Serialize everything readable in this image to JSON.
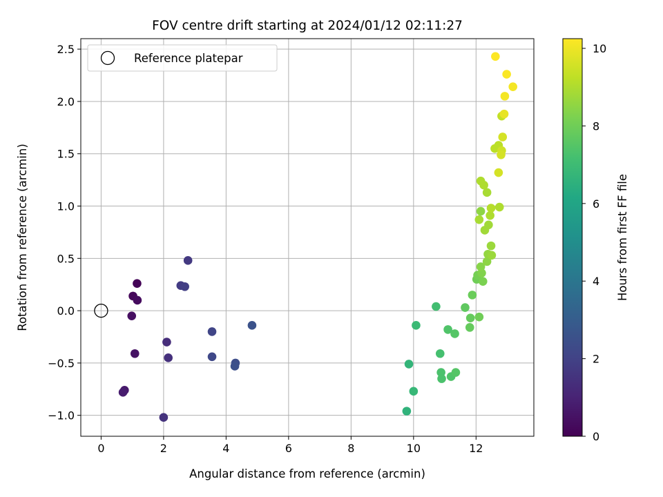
{
  "chart_data": {
    "type": "scatter",
    "title": "FOV centre drift starting at 2024/01/12 02:11:27",
    "xlabel": "Angular distance from reference (arcmin)",
    "ylabel": "Rotation from reference (arcmin)",
    "xlim": [
      -0.65,
      13.85
    ],
    "ylim": [
      -1.2,
      2.6
    ],
    "xticks": [
      0,
      2,
      4,
      6,
      8,
      10,
      12
    ],
    "yticks": [
      -1.0,
      -0.5,
      0.0,
      0.5,
      1.0,
      1.5,
      2.0,
      2.5
    ],
    "xtick_labels": [
      "0",
      "2",
      "4",
      "6",
      "8",
      "10",
      "12"
    ],
    "ytick_labels": [
      "−1.0",
      "−0.5",
      "0.0",
      "0.5",
      "1.0",
      "1.5",
      "2.0",
      "2.5"
    ],
    "grid": true,
    "colormap": "viridis",
    "colorbar": {
      "label": "Hours from first FF file",
      "range": [
        0,
        10.25
      ],
      "ticks": [
        0,
        2,
        4,
        6,
        8,
        10
      ],
      "tick_labels": [
        "0",
        "2",
        "4",
        "6",
        "8",
        "10"
      ]
    },
    "legend": {
      "position": "top-left",
      "entries": [
        {
          "label": "Reference platepar",
          "marker": "open-circle"
        }
      ]
    },
    "reference_point": {
      "x": 0,
      "y": 0
    },
    "points": [
      {
        "x": 1.15,
        "y": 0.26,
        "h": 0.1
      },
      {
        "x": 1.02,
        "y": 0.14,
        "h": 0.2
      },
      {
        "x": 1.16,
        "y": 0.1,
        "h": 0.3
      },
      {
        "x": 0.98,
        "y": -0.05,
        "h": 0.4
      },
      {
        "x": 1.08,
        "y": -0.41,
        "h": 0.5
      },
      {
        "x": 0.75,
        "y": -0.76,
        "h": 0.7
      },
      {
        "x": 0.7,
        "y": -0.78,
        "h": 0.8
      },
      {
        "x": 2.1,
        "y": -0.3,
        "h": 1.3
      },
      {
        "x": 2.15,
        "y": -0.45,
        "h": 1.4
      },
      {
        "x": 2.0,
        "y": -1.02,
        "h": 1.5
      },
      {
        "x": 2.78,
        "y": 0.48,
        "h": 1.7
      },
      {
        "x": 2.55,
        "y": 0.24,
        "h": 1.8
      },
      {
        "x": 2.68,
        "y": 0.23,
        "h": 1.9
      },
      {
        "x": 3.55,
        "y": -0.2,
        "h": 2.1
      },
      {
        "x": 3.55,
        "y": -0.44,
        "h": 2.2
      },
      {
        "x": 4.3,
        "y": -0.5,
        "h": 2.4
      },
      {
        "x": 4.28,
        "y": -0.53,
        "h": 2.5
      },
      {
        "x": 4.83,
        "y": -0.14,
        "h": 2.6
      },
      {
        "x": 9.78,
        "y": -0.96,
        "h": 6.6
      },
      {
        "x": 9.85,
        "y": -0.51,
        "h": 6.7
      },
      {
        "x": 10.0,
        "y": -0.77,
        "h": 6.8
      },
      {
        "x": 10.08,
        "y": -0.14,
        "h": 6.9
      },
      {
        "x": 10.72,
        "y": 0.04,
        "h": 7.1
      },
      {
        "x": 10.85,
        "y": -0.41,
        "h": 7.2
      },
      {
        "x": 10.88,
        "y": -0.59,
        "h": 7.3
      },
      {
        "x": 10.9,
        "y": -0.65,
        "h": 7.3
      },
      {
        "x": 11.1,
        "y": -0.18,
        "h": 7.4
      },
      {
        "x": 11.2,
        "y": -0.63,
        "h": 7.4
      },
      {
        "x": 11.32,
        "y": -0.22,
        "h": 7.5
      },
      {
        "x": 11.35,
        "y": -0.59,
        "h": 7.5
      },
      {
        "x": 11.65,
        "y": 0.03,
        "h": 7.7
      },
      {
        "x": 11.82,
        "y": -0.07,
        "h": 7.8
      },
      {
        "x": 11.8,
        "y": -0.16,
        "h": 7.8
      },
      {
        "x": 11.88,
        "y": 0.15,
        "h": 7.9
      },
      {
        "x": 12.1,
        "y": -0.06,
        "h": 8.0
      },
      {
        "x": 12.02,
        "y": 0.3,
        "h": 8.0
      },
      {
        "x": 12.05,
        "y": 0.34,
        "h": 8.1
      },
      {
        "x": 12.22,
        "y": 0.28,
        "h": 8.2
      },
      {
        "x": 12.18,
        "y": 0.36,
        "h": 8.3
      },
      {
        "x": 12.15,
        "y": 0.42,
        "h": 8.4
      },
      {
        "x": 12.35,
        "y": 0.47,
        "h": 8.5
      },
      {
        "x": 12.38,
        "y": 0.54,
        "h": 8.6
      },
      {
        "x": 12.5,
        "y": 0.53,
        "h": 8.7
      },
      {
        "x": 12.48,
        "y": 0.62,
        "h": 8.7
      },
      {
        "x": 12.28,
        "y": 0.77,
        "h": 8.8
      },
      {
        "x": 12.4,
        "y": 0.82,
        "h": 8.8
      },
      {
        "x": 12.1,
        "y": 0.87,
        "h": 8.9
      },
      {
        "x": 12.15,
        "y": 0.95,
        "h": 8.5
      },
      {
        "x": 12.45,
        "y": 0.91,
        "h": 9.0
      },
      {
        "x": 12.48,
        "y": 0.98,
        "h": 9.1
      },
      {
        "x": 12.75,
        "y": 0.99,
        "h": 9.0
      },
      {
        "x": 12.35,
        "y": 1.13,
        "h": 8.9
      },
      {
        "x": 12.25,
        "y": 1.2,
        "h": 9.0
      },
      {
        "x": 12.15,
        "y": 1.24,
        "h": 9.0
      },
      {
        "x": 12.72,
        "y": 1.32,
        "h": 9.6
      },
      {
        "x": 12.6,
        "y": 1.55,
        "h": 9.2
      },
      {
        "x": 12.72,
        "y": 1.58,
        "h": 9.2
      },
      {
        "x": 12.82,
        "y": 1.53,
        "h": 9.5
      },
      {
        "x": 12.8,
        "y": 1.49,
        "h": 9.6
      },
      {
        "x": 12.85,
        "y": 1.66,
        "h": 9.6
      },
      {
        "x": 12.82,
        "y": 1.86,
        "h": 9.3
      },
      {
        "x": 12.9,
        "y": 1.88,
        "h": 9.9
      },
      {
        "x": 12.92,
        "y": 2.05,
        "h": 10.1
      },
      {
        "x": 12.98,
        "y": 2.26,
        "h": 10.2
      },
      {
        "x": 13.18,
        "y": 2.14,
        "h": 10.1
      },
      {
        "x": 12.62,
        "y": 2.43,
        "h": 10.25
      }
    ]
  }
}
